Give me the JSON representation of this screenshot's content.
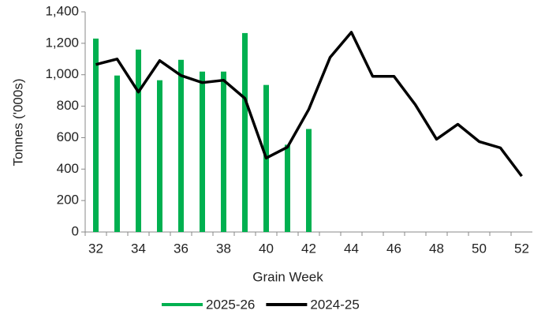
{
  "chart_data": {
    "type": "bar",
    "x_label": "Grain Week",
    "y_label": "Tonnes ('000s)",
    "categories": [
      "32",
      null,
      "34",
      null,
      "36",
      null,
      "38",
      null,
      "40",
      null,
      "42",
      null,
      "44",
      null,
      "46",
      null,
      "48",
      null,
      "50",
      null,
      "52"
    ],
    "series": [
      {
        "name": "2025-26",
        "type": "bar",
        "color": "#00b050",
        "values": [
          1230,
          995,
          1160,
          965,
          1095,
          1020,
          1020,
          1265,
          935,
          555,
          655,
          null,
          null,
          null,
          null,
          null,
          null,
          null,
          null,
          null,
          null
        ]
      },
      {
        "name": "2024-25",
        "type": "line",
        "color": "#000000",
        "values": [
          1065,
          1100,
          890,
          1090,
          995,
          950,
          965,
          850,
          470,
          540,
          780,
          1110,
          1270,
          990,
          990,
          810,
          590,
          685,
          575,
          535,
          355
        ]
      }
    ],
    "ylim": [
      0,
      1400
    ],
    "yticks": [
      0,
      200,
      400,
      600,
      800,
      {
        "value": 1000,
        "label": "1,000"
      },
      {
        "value": 1200,
        "label": "1,200"
      },
      {
        "value": 1400,
        "label": "1,400"
      }
    ],
    "legend": "bottom"
  }
}
